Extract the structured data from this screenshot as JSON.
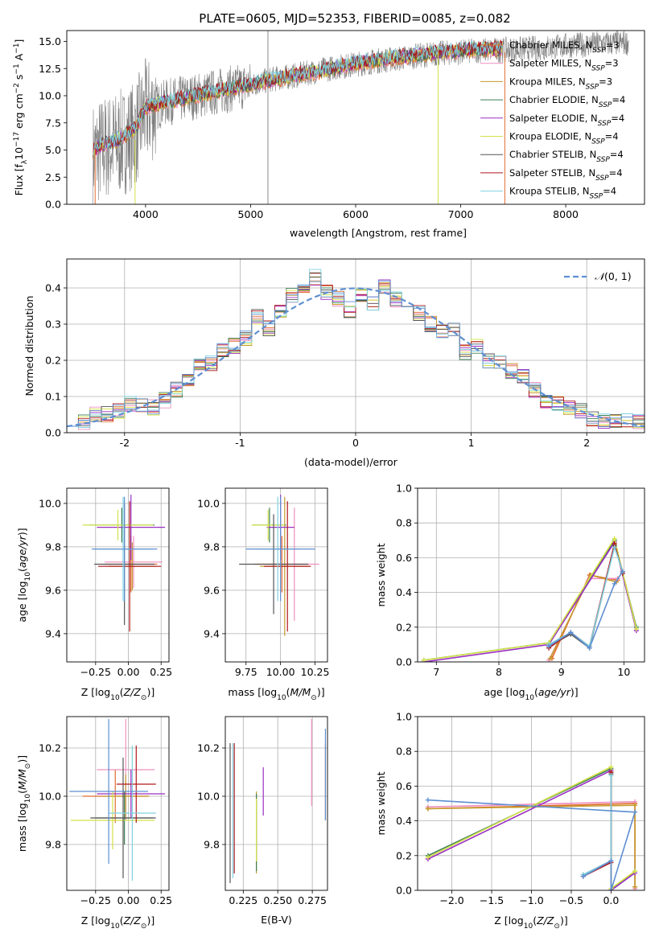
{
  "title": "PLATE=0605, MJD=52353, FIBERID=0085, z=0.082",
  "colors": {
    "chabrier_miles": "#e06d2f",
    "salpeter_miles": "#ee8fbf",
    "kroupa_miles": "#c59a2c",
    "chabrier_elodie": "#3d7f55",
    "salpeter_elodie": "#9b2fc2",
    "kroupa_elodie": "#d3e14a",
    "chabrier_stelib": "#555555",
    "salpeter_stelib": "#b0171c",
    "kroupa_stelib": "#7fd2e0",
    "normal": "#5e8fd1",
    "spectrum": "#7f7f7f"
  },
  "chart_data": [
    {
      "id": "spectrum",
      "type": "line",
      "title": "PLATE=0605, MJD=52353, FIBERID=0085, z=0.082",
      "xlabel": "wavelength [Angstrom, rest frame]",
      "ylabel": "Flux [f_λ10^-17 erg cm^-2 s^-1 A^-1]",
      "xlim": [
        3250,
        8750
      ],
      "ylim": [
        0,
        16
      ],
      "xticks": [
        4000,
        5000,
        6000,
        7000,
        8000
      ],
      "yticks": [
        0.0,
        2.5,
        5.0,
        7.5,
        10.0,
        12.5,
        15.0
      ],
      "ytick_labels": [
        "0.0",
        "2.5",
        "5.0",
        "7.5",
        "10.0",
        "12.5",
        "15.0"
      ],
      "grid": false,
      "legend_position": "top-right",
      "legend": [
        "Chabrier MILES, N_SSP=3",
        "Salpeter MILES, N_SSP=3",
        "Kroupa MILES, N_SSP=3",
        "Chabrier ELODIE, N_SSP=4",
        "Salpeter ELODIE, N_SSP=4",
        "Kroupa ELODIE, N_SSP=4",
        "Chabrier STELIB, N_SSP=4",
        "Salpeter STELIB, N_SSP=4",
        "Kroupa STELIB, N_SSP=4"
      ],
      "data_continuum": {
        "x": [
          3500,
          3600,
          3700,
          3800,
          3900,
          4000,
          4200,
          4400,
          4600,
          4800,
          5000,
          5200,
          5400,
          5600,
          5800,
          6000,
          6200,
          6400,
          6600,
          6800,
          7000,
          7200,
          7400,
          7600,
          7800,
          8000,
          8200,
          8400,
          8600
        ],
        "y": [
          4.5,
          5.2,
          5.5,
          5.8,
          6.5,
          8.5,
          9.4,
          9.8,
          10.2,
          10.6,
          11.0,
          11.5,
          11.8,
          12.2,
          12.6,
          12.9,
          13.2,
          13.4,
          13.7,
          13.9,
          14.0,
          14.2,
          14.2,
          14.3,
          14.4,
          14.6,
          14.7,
          14.8,
          14.9
        ]
      },
      "model_continuum": {
        "x": [
          3500,
          3600,
          3700,
          3800,
          3900,
          4000,
          4200,
          4400,
          4600,
          4800,
          5000,
          5200,
          5400,
          5600,
          5800,
          6000,
          6200,
          6400,
          6600,
          6800,
          7000,
          7200,
          7400
        ],
        "y": [
          4.8,
          5.4,
          5.6,
          6.2,
          6.8,
          8.8,
          9.3,
          9.7,
          10.1,
          10.5,
          10.9,
          11.3,
          11.7,
          12.0,
          12.4,
          12.8,
          13.1,
          13.4,
          13.6,
          13.8,
          14.0,
          14.1,
          14.2
        ]
      }
    },
    {
      "id": "residuals",
      "type": "line",
      "xlabel": "(data-model)/error",
      "ylabel": "Normed distribution",
      "xlim": [
        -2.5,
        2.5
      ],
      "ylim": [
        0,
        0.48
      ],
      "xticks": [
        -2,
        -1,
        0,
        1,
        2
      ],
      "yticks": [
        0.0,
        0.1,
        0.2,
        0.3,
        0.4
      ],
      "ytick_labels": [
        "0.0",
        "0.1",
        "0.2",
        "0.3",
        "0.4"
      ],
      "grid": true,
      "legend_position": "top-right",
      "legend": [
        "N(0,1)"
      ],
      "bin_edges": [
        -2.5,
        -2.4,
        -2.3,
        -2.2,
        -2.1,
        -2.0,
        -1.9,
        -1.8,
        -1.7,
        -1.6,
        -1.5,
        -1.4,
        -1.3,
        -1.2,
        -1.1,
        -1.0,
        -0.9,
        -0.8,
        -0.7,
        -0.6,
        -0.5,
        -0.4,
        -0.3,
        -0.2,
        -0.1,
        0.0,
        0.1,
        0.2,
        0.3,
        0.4,
        0.5,
        0.6,
        0.7,
        0.8,
        0.9,
        1.0,
        1.1,
        1.2,
        1.3,
        1.4,
        1.5,
        1.6,
        1.7,
        1.8,
        1.9,
        2.0,
        2.1,
        2.2,
        2.3,
        2.4,
        2.5
      ],
      "histogram_base": [
        0.04,
        0.03,
        0.05,
        0.05,
        0.06,
        0.08,
        0.08,
        0.07,
        0.09,
        0.12,
        0.15,
        0.19,
        0.19,
        0.23,
        0.24,
        0.26,
        0.32,
        0.29,
        0.34,
        0.38,
        0.41,
        0.43,
        0.39,
        0.37,
        0.34,
        0.38,
        0.36,
        0.4,
        0.37,
        0.34,
        0.33,
        0.3,
        0.28,
        0.29,
        0.22,
        0.24,
        0.2,
        0.19,
        0.17,
        0.16,
        0.12,
        0.09,
        0.08,
        0.07,
        0.06,
        0.04,
        0.03,
        0.03,
        0.03,
        0.03
      ],
      "normal_curve": {
        "mu": 0,
        "sigma": 1,
        "peak": 0.399
      }
    },
    {
      "id": "age-vs-Z",
      "type": "scatter",
      "xlabel": "Z [log10(Z/Z_sun)]",
      "ylabel": "age [log10(age/yr)]",
      "xlim": [
        -0.47,
        0.31
      ],
      "ylim": [
        9.27,
        10.07
      ],
      "xticks": [
        -0.25,
        0.0,
        0.25
      ],
      "xtick_labels": [
        "−0.25",
        "0.00",
        "0.25"
      ],
      "yticks": [
        9.4,
        9.6,
        9.8,
        10.0
      ],
      "ytick_labels": [
        "9.4",
        "9.6",
        "9.8",
        "10.0"
      ],
      "grid": true,
      "points": [
        {
          "model": "chabrier_miles",
          "x": 0.02,
          "xerr": 0.2,
          "y": 9.72,
          "yerr": 0.13
        },
        {
          "model": "salpeter_miles",
          "x": 0.04,
          "xerr": 0.22,
          "y": 9.73,
          "yerr": 0.12
        },
        {
          "model": "kroupa_miles",
          "x": 0.03,
          "xerr": 0.18,
          "y": 9.71,
          "yerr": 0.11
        },
        {
          "model": "chabrier_elodie",
          "x": -0.05,
          "xerr": 0.25,
          "y": 9.9,
          "yerr": 0.08
        },
        {
          "model": "salpeter_elodie",
          "x": 0.02,
          "xerr": 0.26,
          "y": 9.89,
          "yerr": 0.15
        },
        {
          "model": "kroupa_elodie",
          "x": -0.08,
          "xerr": 0.27,
          "y": 9.9,
          "yerr": 0.07
        },
        {
          "model": "chabrier_stelib",
          "x": -0.03,
          "xerr": 0.23,
          "y": 9.72,
          "yerr": 0.28
        },
        {
          "model": "salpeter_stelib",
          "x": 0.01,
          "xerr": 0.24,
          "y": 9.71,
          "yerr": 0.3
        },
        {
          "model": "kroupa_stelib",
          "x": -0.04,
          "xerr": 0.22,
          "y": 9.79,
          "yerr": 0.24
        },
        {
          "model": "normal",
          "x": -0.03,
          "xerr": 0.25,
          "y": 9.79,
          "yerr": 0.24
        }
      ]
    },
    {
      "id": "age-vs-mass",
      "type": "scatter",
      "xlabel": "mass [log10(M/M_sun)]",
      "xlim": [
        9.6,
        10.34
      ],
      "ylim": [
        9.27,
        10.07
      ],
      "xticks": [
        9.75,
        10.0,
        10.25
      ],
      "xtick_labels": [
        "9.75",
        "10.00",
        "10.25"
      ],
      "yticks": [
        9.4,
        9.6,
        9.8,
        10.0
      ],
      "ytick_labels": [
        "9.4",
        "9.6",
        "9.8",
        "10.0"
      ],
      "grid": true,
      "points": [
        {
          "model": "chabrier_miles",
          "x": 10.01,
          "xerr": 0.2,
          "y": 9.72,
          "yerr": 0.13
        },
        {
          "model": "salpeter_miles",
          "x": 10.1,
          "xerr": 0.18,
          "y": 9.72,
          "yerr": 0.26
        },
        {
          "model": "kroupa_miles",
          "x": 10.03,
          "xerr": 0.18,
          "y": 9.71,
          "yerr": 0.32
        },
        {
          "model": "chabrier_elodie",
          "x": 9.92,
          "xerr": 0.12,
          "y": 9.9,
          "yerr": 0.08
        },
        {
          "model": "salpeter_elodie",
          "x": 10.0,
          "xerr": 0.1,
          "y": 9.89,
          "yerr": 0.15
        },
        {
          "model": "kroupa_elodie",
          "x": 9.91,
          "xerr": 0.12,
          "y": 9.9,
          "yerr": 0.07
        },
        {
          "model": "chabrier_stelib",
          "x": 9.95,
          "xerr": 0.25,
          "y": 9.72,
          "yerr": 0.23
        },
        {
          "model": "salpeter_stelib",
          "x": 10.05,
          "xerr": 0.17,
          "y": 9.71,
          "yerr": 0.3
        },
        {
          "model": "kroupa_stelib",
          "x": 9.98,
          "xerr": 0.15,
          "y": 9.79,
          "yerr": 0.24
        },
        {
          "model": "normal",
          "x": 10.0,
          "xerr": 0.25,
          "y": 9.79,
          "yerr": 0.24
        }
      ]
    },
    {
      "id": "mass-weight-vs-age",
      "type": "line",
      "xlabel": "age [log10(age/yr)]",
      "ylabel": "mass weight",
      "xlim": [
        6.7,
        10.33
      ],
      "ylim": [
        0,
        1
      ],
      "xticks": [
        7,
        8,
        9,
        10
      ],
      "yticks": [
        0.0,
        0.2,
        0.4,
        0.6,
        0.8,
        1.0
      ],
      "ytick_labels": [
        "0.0",
        "0.2",
        "0.4",
        "0.6",
        "0.8",
        "1.0"
      ],
      "grid": true,
      "series": [
        {
          "model": "chabrier_miles",
          "x": [
            8.85,
            9.45,
            9.9
          ],
          "y": [
            0.02,
            0.5,
            0.47
          ]
        },
        {
          "model": "salpeter_miles",
          "x": [
            8.8,
            9.45,
            9.9
          ],
          "y": [
            0.01,
            0.48,
            0.48
          ]
        },
        {
          "model": "kroupa_miles",
          "x": [
            8.82,
            9.47,
            9.88
          ],
          "y": [
            0.02,
            0.5,
            0.46
          ]
        },
        {
          "model": "chabrier_elodie",
          "x": [
            6.8,
            8.8,
            9.85,
            10.2
          ],
          "y": [
            0.01,
            0.11,
            0.7,
            0.2
          ]
        },
        {
          "model": "salpeter_elodie",
          "x": [
            6.8,
            8.8,
            9.85,
            10.2
          ],
          "y": [
            0.0,
            0.1,
            0.69,
            0.18
          ]
        },
        {
          "model": "kroupa_elodie",
          "x": [
            6.8,
            8.8,
            9.85,
            10.2
          ],
          "y": [
            0.01,
            0.11,
            0.71,
            0.19
          ]
        },
        {
          "model": "chabrier_stelib",
          "x": [
            8.8,
            9.15,
            9.45,
            9.85,
            9.98
          ],
          "y": [
            0.09,
            0.16,
            0.08,
            0.67,
            0.52
          ]
        },
        {
          "model": "salpeter_stelib",
          "x": [
            8.8,
            9.15,
            9.45,
            9.85,
            9.98
          ],
          "y": [
            0.08,
            0.17,
            0.09,
            0.68,
            0.51
          ]
        },
        {
          "model": "kroupa_stelib",
          "x": [
            8.8,
            9.15,
            9.45,
            9.85,
            9.98
          ],
          "y": [
            0.1,
            0.17,
            0.09,
            0.66,
            0.52
          ]
        },
        {
          "model": "normal",
          "x": [
            8.8,
            9.15,
            9.45,
            9.85,
            9.98
          ],
          "y": [
            0.09,
            0.17,
            0.08,
            0.45,
            0.52
          ]
        }
      ]
    },
    {
      "id": "mass-vs-Z",
      "type": "scatter",
      "xlabel": "Z [log10(Z/Z_sun)]",
      "ylabel": "mass [log10(M/M_sun)]",
      "xlim": [
        -0.47,
        0.31
      ],
      "ylim": [
        9.61,
        10.33
      ],
      "xticks": [
        -0.25,
        0.0,
        0.25
      ],
      "xtick_labels": [
        "−0.25",
        "0.00",
        "0.25"
      ],
      "yticks": [
        9.8,
        10.0,
        10.2
      ],
      "ytick_labels": [
        "9.8",
        "10.0",
        "10.2"
      ],
      "grid": true,
      "points": [
        {
          "model": "chabrier_miles",
          "x": -0.1,
          "xerr": 0.25,
          "y": 10.0,
          "yerr": 0.11
        },
        {
          "model": "salpeter_miles",
          "x": -0.02,
          "xerr": 0.22,
          "y": 10.11,
          "yerr": 0.21
        },
        {
          "model": "kroupa_miles",
          "x": -0.02,
          "xerr": 0.18,
          "y": 10.0,
          "yerr": 0.09
        },
        {
          "model": "chabrier_elodie",
          "x": -0.03,
          "xerr": 0.22,
          "y": 9.91,
          "yerr": 0.11
        },
        {
          "model": "salpeter_elodie",
          "x": 0.02,
          "xerr": 0.26,
          "y": 10.01,
          "yerr": 0.1
        },
        {
          "model": "kroupa_elodie",
          "x": -0.12,
          "xerr": 0.32,
          "y": 9.9,
          "yerr": 0.12
        },
        {
          "model": "chabrier_stelib",
          "x": -0.04,
          "xerr": 0.25,
          "y": 9.91,
          "yerr": 0.25
        },
        {
          "model": "salpeter_stelib",
          "x": 0.06,
          "xerr": 0.15,
          "y": 10.05,
          "yerr": 0.16
        },
        {
          "model": "kroupa_stelib",
          "x": 0.03,
          "xerr": 0.18,
          "y": 9.93,
          "yerr": 0.28
        },
        {
          "model": "normal",
          "x": -0.15,
          "xerr": 0.3,
          "y": 10.02,
          "yerr": 0.3
        }
      ]
    },
    {
      "id": "mass-vs-EBV",
      "type": "scatter",
      "xlabel": "E(B-V)",
      "xlim": [
        0.212,
        0.286
      ],
      "ylim": [
        9.61,
        10.33
      ],
      "xticks": [
        0.225,
        0.25,
        0.275
      ],
      "xtick_labels": [
        "0.225",
        "0.250",
        "0.275"
      ],
      "yticks": [
        9.8,
        10.0,
        10.2
      ],
      "ytick_labels": [
        "9.8",
        "10.0",
        "10.2"
      ],
      "grid": true,
      "points": [
        {
          "model": "chabrier_miles",
          "x": 0.2845,
          "y": 10.06,
          "yerr": 0.16
        },
        {
          "model": "salpeter_miles",
          "x": 0.2745,
          "y": 10.14,
          "yerr": 0.18
        },
        {
          "model": "kroupa_miles",
          "x": 0.2345,
          "y": 9.85,
          "yerr": 0.17
        },
        {
          "model": "chabrier_elodie",
          "x": 0.2345,
          "y": 9.85,
          "yerr": 0.16
        },
        {
          "model": "salpeter_elodie",
          "x": 0.2395,
          "y": 10.02,
          "yerr": 0.1
        },
        {
          "model": "kroupa_elodie",
          "x": 0.2345,
          "y": 9.86,
          "yerr": 0.13
        },
        {
          "model": "chabrier_stelib",
          "x": 0.2155,
          "y": 9.93,
          "yerr": 0.29
        },
        {
          "model": "salpeter_stelib",
          "x": 0.2185,
          "y": 9.95,
          "yerr": 0.27
        },
        {
          "model": "kroupa_stelib",
          "x": 0.2175,
          "y": 9.94,
          "yerr": 0.28
        },
        {
          "model": "normal",
          "x": 0.2845,
          "y": 10.09,
          "yerr": 0.19
        }
      ]
    },
    {
      "id": "mass-weight-vs-Z",
      "type": "line",
      "xlabel": "Z [log10(Z/Z_sun)]",
      "ylabel": "mass weight",
      "xlim": [
        -2.43,
        0.42
      ],
      "ylim": [
        0,
        1
      ],
      "xticks": [
        -2.0,
        -1.5,
        -1.0,
        -0.5,
        0.0
      ],
      "xtick_labels": [
        "−2.0",
        "−1.5",
        "−1.0",
        "−0.5",
        "0.0"
      ],
      "yticks": [
        0.0,
        0.2,
        0.4,
        0.6,
        0.8,
        1.0
      ],
      "ytick_labels": [
        "0.0",
        "0.2",
        "0.4",
        "0.6",
        "0.8",
        "1.0"
      ],
      "grid": true,
      "series": [
        {
          "model": "chabrier_miles",
          "x": [
            -2.3,
            0.3,
            0.3
          ],
          "y": [
            0.47,
            0.5,
            0.02
          ]
        },
        {
          "model": "salpeter_miles",
          "x": [
            -2.3,
            0.3,
            0.3
          ],
          "y": [
            0.48,
            0.51,
            0.01
          ]
        },
        {
          "model": "kroupa_miles",
          "x": [
            -2.3,
            0.3,
            0.3
          ],
          "y": [
            0.47,
            0.49,
            0.02
          ]
        },
        {
          "model": "chabrier_elodie",
          "x": [
            -2.3,
            0.0,
            0.0,
            0.3
          ],
          "y": [
            0.2,
            0.7,
            0.0,
            0.11
          ]
        },
        {
          "model": "salpeter_elodie",
          "x": [
            -2.3,
            0.0,
            0.0,
            0.3
          ],
          "y": [
            0.18,
            0.69,
            0.0,
            0.1
          ]
        },
        {
          "model": "kroupa_elodie",
          "x": [
            -2.3,
            0.0,
            0.0,
            0.3
          ],
          "y": [
            0.19,
            0.71,
            0.01,
            0.11
          ]
        },
        {
          "model": "chabrier_stelib",
          "x": [
            -0.35,
            0.0,
            0.0
          ],
          "y": [
            0.09,
            0.17,
            0.67
          ]
        },
        {
          "model": "salpeter_stelib",
          "x": [
            -0.35,
            0.0,
            0.0
          ],
          "y": [
            0.08,
            0.16,
            0.68
          ]
        },
        {
          "model": "kroupa_stelib",
          "x": [
            -0.35,
            0.0,
            0.0
          ],
          "y": [
            0.09,
            0.17,
            0.66
          ]
        },
        {
          "model": "normal",
          "x": [
            -2.3,
            0.3,
            0.0,
            0.0,
            -0.35
          ],
          "y": [
            0.52,
            0.45,
            0.0,
            0.17,
            0.08
          ]
        }
      ]
    }
  ]
}
